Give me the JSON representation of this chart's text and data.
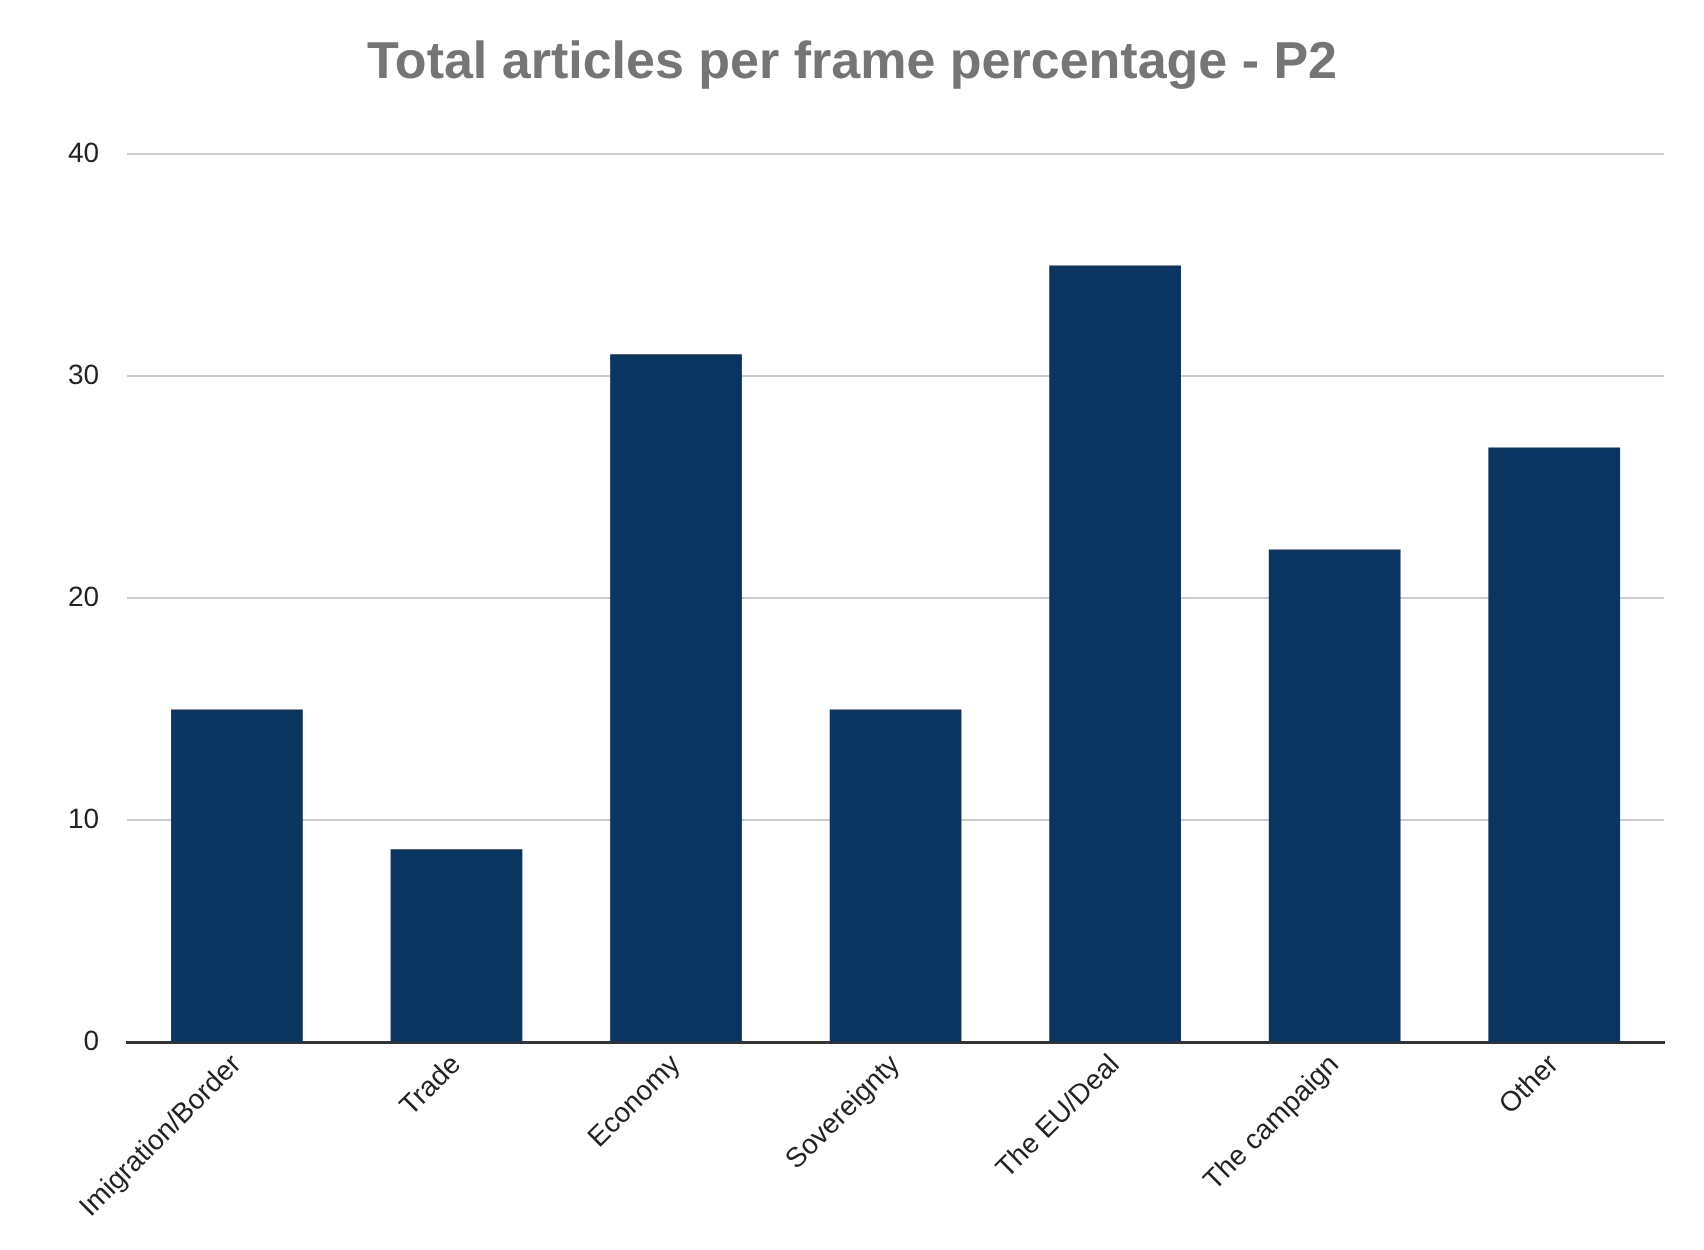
{
  "chart_data": {
    "type": "bar",
    "title": "Total articles per frame percentage - P2",
    "categories": [
      "Imigration/Border",
      "Trade",
      "Economy",
      "Sovereignty",
      "The EU/Deal",
      "The campaign",
      "Other"
    ],
    "values": [
      15,
      8.7,
      31,
      15,
      35,
      22.2,
      26.8
    ],
    "color": "#0b3561",
    "ylim": [
      0,
      40
    ],
    "yticks": [
      0,
      10,
      20,
      30,
      40
    ],
    "grid": "y"
  }
}
